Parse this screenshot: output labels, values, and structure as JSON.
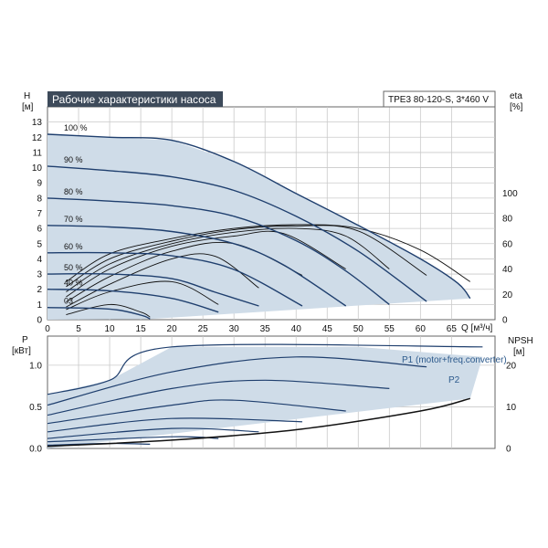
{
  "chart_data": [
    {
      "type": "line",
      "title": "Рабочие характеристики насоса",
      "model": "TPE3 80-120-S, 3*460 V",
      "xlabel": "Q [м³/ч]",
      "ylabel": [
        "H",
        "[м]"
      ],
      "ylabel_right": [
        "eta",
        "[%]"
      ],
      "xlim": [
        0,
        72
      ],
      "ylim": [
        0,
        14
      ],
      "ylim_right": [
        0,
        168
      ],
      "xticks": [
        0,
        5,
        10,
        15,
        20,
        25,
        30,
        35,
        40,
        45,
        50,
        55,
        60,
        65
      ],
      "yticks": [
        0,
        1,
        2,
        3,
        4,
        5,
        6,
        7,
        8,
        9,
        10,
        11,
        12,
        13
      ],
      "yticks_right": [
        0,
        20,
        40,
        60,
        80,
        100
      ],
      "grid": true,
      "colors": {
        "curve": "#1f3f6e",
        "fill": "#cfdce8",
        "eta": "#111111",
        "text": "#2d5a8c"
      },
      "speed_labels": [
        "100 %",
        "90 %",
        "80 %",
        "70 %",
        "60 %",
        "50 %",
        "40 %",
        "03"
      ],
      "head_curves": [
        {
          "name": "100 %",
          "points": [
            [
              0,
              12.2
            ],
            [
              10,
              12.0
            ],
            [
              20,
              11.8
            ],
            [
              30,
              10.4
            ],
            [
              40,
              8.3
            ],
            [
              50,
              6.2
            ],
            [
              60,
              4.0
            ],
            [
              66,
              2.4
            ],
            [
              68,
              1.4
            ]
          ]
        },
        {
          "name": "90 %",
          "points": [
            [
              0,
              10.1
            ],
            [
              10,
              9.8
            ],
            [
              20,
              9.4
            ],
            [
              30,
              8.5
            ],
            [
              40,
              6.8
            ],
            [
              50,
              4.5
            ],
            [
              61,
              1.2
            ]
          ]
        },
        {
          "name": "80 %",
          "points": [
            [
              0,
              8.0
            ],
            [
              10,
              7.8
            ],
            [
              20,
              7.5
            ],
            [
              30,
              6.8
            ],
            [
              40,
              5.2
            ],
            [
              48,
              3.2
            ],
            [
              55,
              1.0
            ]
          ]
        },
        {
          "name": "70 %",
          "points": [
            [
              0,
              6.2
            ],
            [
              10,
              6.1
            ],
            [
              20,
              5.8
            ],
            [
              30,
              5.0
            ],
            [
              38,
              3.6
            ],
            [
              48,
              0.9
            ]
          ]
        },
        {
          "name": "60 %",
          "points": [
            [
              0,
              4.4
            ],
            [
              10,
              4.4
            ],
            [
              20,
              4.2
            ],
            [
              30,
              3.3
            ],
            [
              41,
              0.9
            ]
          ]
        },
        {
          "name": "50 %",
          "points": [
            [
              0,
              3.0
            ],
            [
              10,
              3.0
            ],
            [
              20,
              2.7
            ],
            [
              27,
              1.8
            ],
            [
              34,
              0.9
            ]
          ]
        },
        {
          "name": "40 %",
          "points": [
            [
              0,
              2.0
            ],
            [
              10,
              1.9
            ],
            [
              20,
              1.4
            ],
            [
              27.5,
              0.5
            ]
          ]
        },
        {
          "name": "03",
          "points": [
            [
              0,
              0.8
            ],
            [
              10,
              0.7
            ],
            [
              15,
              0.3
            ],
            [
              16.5,
              0.05
            ]
          ]
        }
      ],
      "eta_curves": [
        [
          [
            3,
            30
          ],
          [
            10,
            52
          ],
          [
            20,
            64
          ],
          [
            30,
            72
          ],
          [
            40,
            75
          ],
          [
            50,
            72
          ],
          [
            60,
            55
          ],
          [
            68,
            30
          ]
        ],
        [
          [
            3,
            26
          ],
          [
            10,
            48
          ],
          [
            20,
            62
          ],
          [
            30,
            71
          ],
          [
            40,
            74
          ],
          [
            50,
            70
          ],
          [
            61,
            35
          ]
        ],
        [
          [
            3,
            22
          ],
          [
            10,
            44
          ],
          [
            20,
            60
          ],
          [
            30,
            69
          ],
          [
            40,
            72
          ],
          [
            48,
            66
          ],
          [
            55,
            40
          ]
        ],
        [
          [
            3,
            18
          ],
          [
            10,
            40
          ],
          [
            20,
            58
          ],
          [
            30,
            66
          ],
          [
            38,
            68
          ],
          [
            48,
            40
          ]
        ],
        [
          [
            3,
            14
          ],
          [
            10,
            34
          ],
          [
            20,
            54
          ],
          [
            30,
            60
          ],
          [
            41,
            35
          ]
        ],
        [
          [
            3,
            10
          ],
          [
            10,
            28
          ],
          [
            20,
            48
          ],
          [
            27,
            50
          ],
          [
            34,
            25
          ]
        ],
        [
          [
            3,
            8
          ],
          [
            10,
            22
          ],
          [
            20,
            30
          ],
          [
            27.5,
            12
          ]
        ],
        [
          [
            3,
            4
          ],
          [
            10,
            12
          ],
          [
            15,
            6
          ],
          [
            16.5,
            2
          ]
        ]
      ],
      "envelope": [
        [
          0,
          13.0
        ],
        [
          0,
          12.2
        ],
        [
          10,
          12.0
        ],
        [
          20,
          11.8
        ],
        [
          30,
          10.4
        ],
        [
          40,
          8.3
        ],
        [
          50,
          6.2
        ],
        [
          60,
          4.0
        ],
        [
          66,
          2.4
        ],
        [
          68,
          1.4
        ],
        [
          16.5,
          0.05
        ],
        [
          0,
          0
        ]
      ]
    },
    {
      "type": "line",
      "xlabel": "",
      "ylabel": [
        "P",
        "[кВт]"
      ],
      "ylabel_right": [
        "NPSH",
        "[м]"
      ],
      "xlim": [
        0,
        72
      ],
      "ylim": [
        0,
        1.35
      ],
      "ylim_right": [
        0,
        27
      ],
      "yticks": [
        0.0,
        0.5,
        1.0
      ],
      "yticks_right": [
        0,
        10,
        20
      ],
      "grid": true,
      "annotations": [
        "P1 (motor+freq.converter)",
        "P2"
      ],
      "p1_curves": [
        [
          [
            0,
            0.65
          ],
          [
            10,
            0.82
          ],
          [
            20,
            1.22
          ],
          [
            70,
            1.22
          ]
        ],
        [
          [
            0,
            0.52
          ],
          [
            20,
            0.92
          ],
          [
            40,
            1.1
          ],
          [
            61,
            0.98
          ]
        ],
        [
          [
            0,
            0.4
          ],
          [
            20,
            0.72
          ],
          [
            35,
            0.82
          ],
          [
            55,
            0.72
          ]
        ],
        [
          [
            0,
            0.3
          ],
          [
            20,
            0.52
          ],
          [
            30,
            0.58
          ],
          [
            48,
            0.45
          ]
        ],
        [
          [
            0,
            0.2
          ],
          [
            20,
            0.36
          ],
          [
            41,
            0.32
          ]
        ],
        [
          [
            0,
            0.12
          ],
          [
            20,
            0.24
          ],
          [
            34,
            0.2
          ]
        ],
        [
          [
            0,
            0.08
          ],
          [
            20,
            0.14
          ],
          [
            27.5,
            0.12
          ]
        ],
        [
          [
            0,
            0.04
          ],
          [
            10,
            0.06
          ],
          [
            16.5,
            0.05
          ]
        ]
      ],
      "npsh_curve": [
        [
          0,
          0.5
        ],
        [
          20,
          2.0
        ],
        [
          40,
          4.5
        ],
        [
          60,
          9.0
        ],
        [
          68,
          12.0
        ]
      ],
      "envelope": [
        [
          0,
          0.65
        ],
        [
          10,
          0.82
        ],
        [
          20,
          1.22
        ],
        [
          50,
          1.22
        ],
        [
          70,
          1.1
        ],
        [
          68,
          0.6
        ],
        [
          0,
          0
        ]
      ]
    }
  ]
}
